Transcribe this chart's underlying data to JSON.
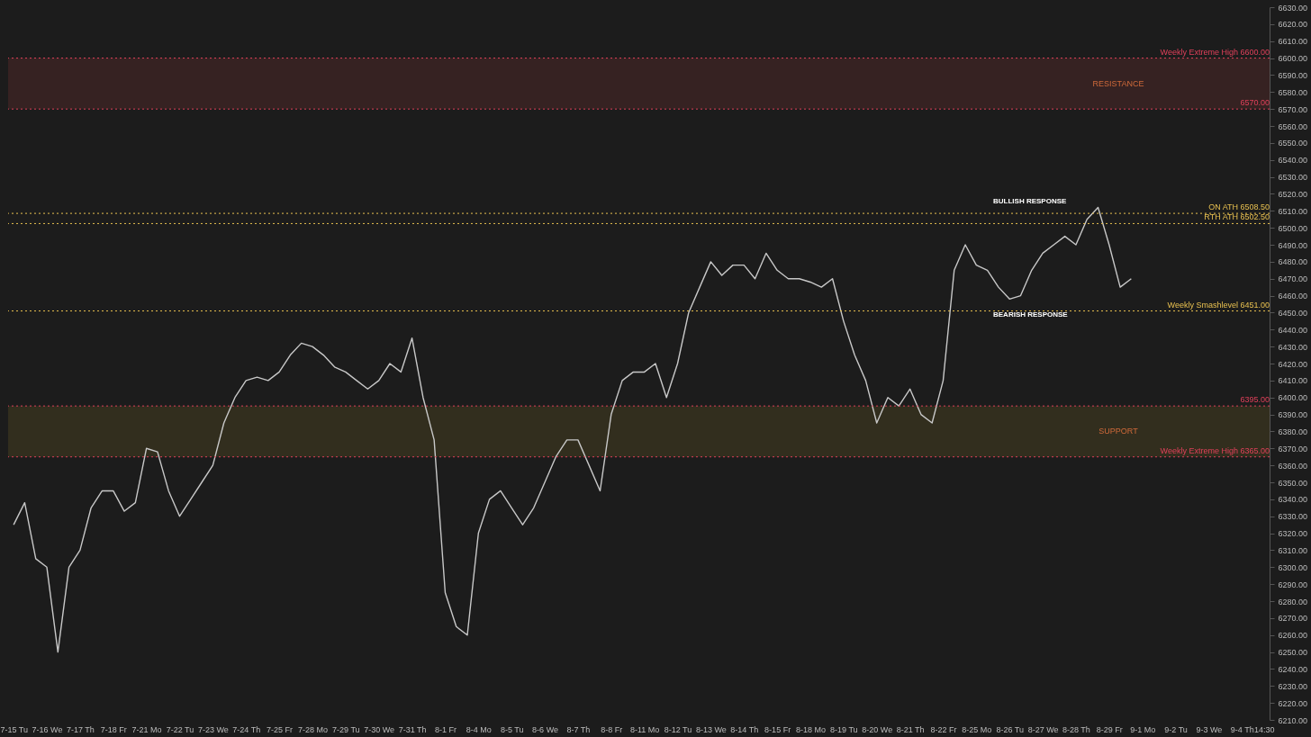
{
  "chart_data": {
    "type": "line",
    "categories": [
      "7-15 Tu",
      null,
      null,
      "7-16 We",
      null,
      null,
      "7-17 Th",
      null,
      null,
      "7-18 Fr",
      null,
      null,
      "7-21 Mo",
      null,
      null,
      "7-22 Tu",
      null,
      null,
      "7-23 We",
      null,
      null,
      "7-24 Th",
      null,
      null,
      "7-25 Fr",
      null,
      null,
      "7-28 Mo",
      null,
      null,
      "7-29 Tu",
      null,
      null,
      "7-30 We",
      null,
      null,
      "7-31 Th",
      null,
      null,
      "8-1 Fr",
      null,
      null,
      "8-4 Mo",
      null,
      null,
      "8-5 Tu",
      null,
      null,
      "8-6 We",
      null,
      null,
      "8-7 Th",
      null,
      null,
      "8-8 Fr",
      null,
      null,
      "8-11 Mo",
      null,
      null,
      "8-12 Tu",
      null,
      null,
      "8-13 We",
      null,
      null,
      "8-14 Th",
      null,
      null,
      "8-15 Fr",
      null,
      null,
      "8-18 Mo",
      null,
      null,
      "8-19 Tu",
      null,
      null,
      "8-20 We",
      null,
      null,
      "8-21 Th",
      null,
      null,
      "8-22 Fr",
      null,
      null,
      "8-25 Mo",
      null,
      null,
      "8-26 Tu",
      null,
      null,
      "8-27 We",
      null,
      null,
      "8-28 Th",
      null,
      null,
      "8-29 Fr",
      null,
      null,
      "9-1 Mo",
      null,
      null,
      "9-2 Tu",
      null,
      null,
      "9-3 We",
      null,
      null,
      "9-4 Th",
      null,
      "14:30"
    ],
    "series": [
      {
        "color": "#c8c8c8",
        "values": [
          6325,
          6338,
          6305,
          6300,
          6250,
          6300,
          6310,
          6335,
          6345,
          6345,
          6333,
          6338,
          6370,
          6368,
          6345,
          6330,
          6340,
          6350,
          6360,
          6385,
          6400,
          6410,
          6412,
          6410,
          6415,
          6425,
          6432,
          6430,
          6425,
          6418,
          6415,
          6410,
          6405,
          6410,
          6420,
          6415,
          6435,
          6400,
          6375,
          6285,
          6265,
          6260,
          6320,
          6340,
          6345,
          6335,
          6325,
          6335,
          6350,
          6365,
          6375,
          6375,
          6360,
          6345,
          6390,
          6410,
          6415,
          6415,
          6420,
          6400,
          6420,
          6450,
          6465,
          6480,
          6472,
          6478,
          6478,
          6470,
          6485,
          6475,
          6470,
          6470,
          6468,
          6465,
          6470,
          6445,
          6425,
          6410,
          6385,
          6400,
          6395,
          6405,
          6390,
          6385,
          6410,
          6475,
          6490,
          6478,
          6475,
          6465,
          6458,
          6460,
          6475,
          6485,
          6490,
          6495,
          6490,
          6505,
          6512,
          6490,
          6465,
          6470,
          null,
          null,
          null,
          null,
          null,
          null,
          null,
          null,
          null,
          null,
          null,
          null
        ]
      }
    ],
    "ylim": [
      6210,
      6630
    ],
    "yticks": [
      {
        "value": 6210,
        "label": "6210.00"
      },
      {
        "value": 6220,
        "label": "6220.00"
      },
      {
        "value": 6230,
        "label": "6230.00"
      },
      {
        "value": 6240,
        "label": "6240.00"
      },
      {
        "value": 6250,
        "label": "6250.00"
      },
      {
        "value": 6260,
        "label": "6260.00"
      },
      {
        "value": 6270,
        "label": "6270.00"
      },
      {
        "value": 6280,
        "label": "6280.00"
      },
      {
        "value": 6290,
        "label": "6290.00"
      },
      {
        "value": 6300,
        "label": "6300.00"
      },
      {
        "value": 6310,
        "label": "6310.00"
      },
      {
        "value": 6320,
        "label": "6320.00"
      },
      {
        "value": 6330,
        "label": "6330.00"
      },
      {
        "value": 6340,
        "label": "6340.00"
      },
      {
        "value": 6350,
        "label": "6350.00"
      },
      {
        "value": 6360,
        "label": "6360.00"
      },
      {
        "value": 6370,
        "label": "6370.00"
      },
      {
        "value": 6380,
        "label": "6380.00"
      },
      {
        "value": 6390,
        "label": "6390.00"
      },
      {
        "value": 6400,
        "label": "6400.00"
      },
      {
        "value": 6410,
        "label": "6410.00"
      },
      {
        "value": 6420,
        "label": "6420.00"
      },
      {
        "value": 6430,
        "label": "6430.00"
      },
      {
        "value": 6440,
        "label": "6440.00"
      },
      {
        "value": 6450,
        "label": "6450.00"
      },
      {
        "value": 6460,
        "label": "6460.00"
      },
      {
        "value": 6470,
        "label": "6470.00"
      },
      {
        "value": 6480,
        "label": "6480.00"
      },
      {
        "value": 6490,
        "label": "6490.00"
      },
      {
        "value": 6500,
        "label": "6500.00"
      },
      {
        "value": 6510,
        "label": "6510.00"
      },
      {
        "value": 6520,
        "label": "6520.00"
      },
      {
        "value": 6530,
        "label": "6530.00"
      },
      {
        "value": 6540,
        "label": "6540.00"
      },
      {
        "value": 6550,
        "label": "6550.00"
      },
      {
        "value": 6560,
        "label": "6560.00"
      },
      {
        "value": 6570,
        "label": "6570.00"
      },
      {
        "value": 6580,
        "label": "6580.00"
      },
      {
        "value": 6590,
        "label": "6590.00"
      },
      {
        "value": 6600,
        "label": "6600.00"
      },
      {
        "value": 6610,
        "label": "6610.00"
      },
      {
        "value": 6620,
        "label": "6620.00"
      },
      {
        "value": 6630,
        "label": "6630.00"
      }
    ],
    "ref_lines": [
      {
        "axis": "y",
        "value": 6600,
        "label": "Weekly Extreme High  6600.00",
        "color": "#e0405a",
        "line_style": "dotted"
      },
      {
        "axis": "y",
        "value": 6570,
        "label": "6570.00",
        "color": "#e0405a",
        "line_style": "dotted"
      },
      {
        "axis": "y",
        "value": 6508.5,
        "label": "ON ATH  6508.50",
        "color": "#e8c050",
        "line_style": "dotted"
      },
      {
        "axis": "y",
        "value": 6502.5,
        "label": "RTH ATH  6502.50",
        "color": "#e8c050",
        "line_style": "dotted"
      },
      {
        "axis": "y",
        "value": 6451,
        "label": "Weekly Smashlevel  6451.00",
        "color": "#e8c050",
        "line_style": "dotted"
      },
      {
        "axis": "y",
        "value": 6395,
        "label": "6395.00",
        "color": "#e0405a",
        "line_style": "dotted"
      },
      {
        "axis": "y",
        "value": 6365,
        "label": "Weekly Extreme High  6365.00",
        "color": "#e0405a",
        "line_style": "dotted"
      }
    ],
    "bands": [
      {
        "axis": "y",
        "from": 6570,
        "to": 6600,
        "label": "RESISTANCE",
        "color": "#3a2424"
      },
      {
        "axis": "y",
        "from": 6365,
        "to": 6395,
        "label": "SUPPORT",
        "color": "#35311f"
      }
    ],
    "annotations": [
      "BULLISH RESPONSE",
      "BEARISH RESPONSE"
    ],
    "grid": false,
    "marker": "none",
    "line_style": "solid"
  }
}
